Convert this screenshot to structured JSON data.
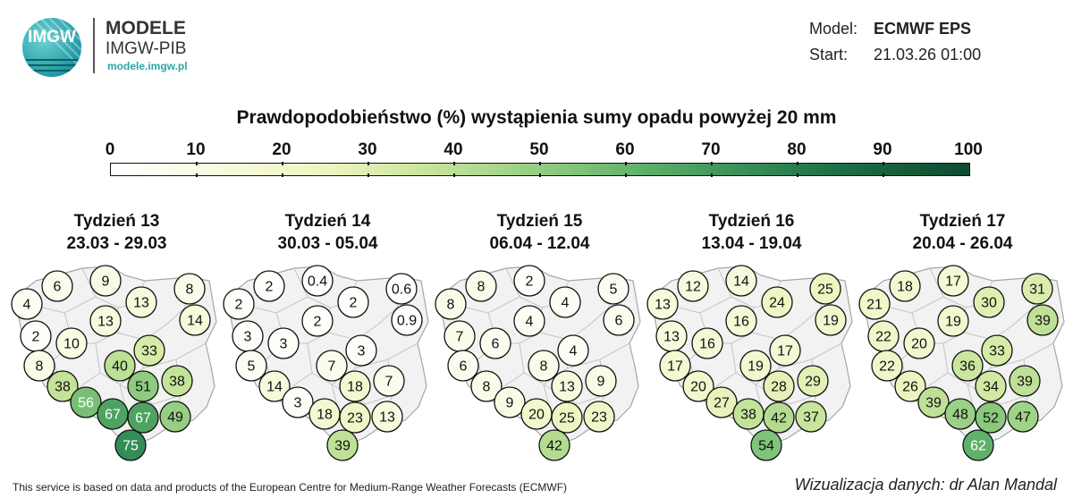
{
  "header": {
    "logo_text": "IMGW",
    "brand_name": "MODELE",
    "brand_org": "IMGW-PIB",
    "brand_url": "modele.imgw.pl",
    "model_label": "Model:",
    "model_value": "ECMWF EPS",
    "start_label": "Start:",
    "start_value": "21.03.26 01:00"
  },
  "title": "Prawdopodobieństwo (%) wystąpienia sumy opadu powyżej 20 mm",
  "legend": {
    "ticks": [
      "0",
      "10",
      "20",
      "30",
      "40",
      "50",
      "60",
      "70",
      "80",
      "90",
      "100"
    ],
    "min": 0,
    "max": 100,
    "colors": [
      "#ffffff",
      "#eef5c2",
      "#a8d78a",
      "#54a865",
      "#0d4b30"
    ]
  },
  "weeks": [
    {
      "label": "Tydzień 13",
      "dates": "23.03 - 29.03",
      "values": [
        "4",
        "6",
        "9",
        "13",
        "8",
        "14",
        "13",
        "2",
        "10",
        "33",
        "8",
        "40",
        "38",
        "51",
        "38",
        "56",
        "67",
        "67",
        "49",
        "75"
      ]
    },
    {
      "label": "Tydzień 14",
      "dates": "30.03 - 05.04",
      "values": [
        "2",
        "2",
        "0.4",
        "2",
        "0.6",
        "0.9",
        "2",
        "3",
        "3",
        "3",
        "5",
        "7",
        "14",
        "18",
        "7",
        "3",
        "18",
        "23",
        "13",
        "39"
      ]
    },
    {
      "label": "Tydzień 15",
      "dates": "06.04 - 12.04",
      "values": [
        "8",
        "8",
        "2",
        "4",
        "5",
        "6",
        "4",
        "7",
        "6",
        "4",
        "6",
        "8",
        "8",
        "13",
        "9",
        "9",
        "20",
        "25",
        "23",
        "42"
      ]
    },
    {
      "label": "Tydzień 16",
      "dates": "13.04 - 19.04",
      "values": [
        "13",
        "12",
        "14",
        "24",
        "25",
        "19",
        "16",
        "13",
        "16",
        "17",
        "17",
        "19",
        "20",
        "28",
        "29",
        "27",
        "38",
        "42",
        "37",
        "54"
      ]
    },
    {
      "label": "Tydzień 17",
      "dates": "20.04 - 26.04",
      "values": [
        "21",
        "18",
        "17",
        "30",
        "31",
        "39",
        "19",
        "22",
        "20",
        "33",
        "22",
        "36",
        "26",
        "34",
        "39",
        "39",
        "48",
        "52",
        "47",
        "62"
      ]
    }
  ],
  "footer": "This service is based on data and products of the European Centre for Medium-Range Weather Forecasts (ECMWF)",
  "credit": "Wizualizacja danych: dr Alan Mandal"
}
